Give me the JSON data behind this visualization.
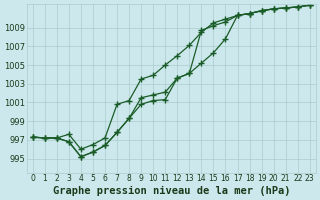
{
  "title": "Graphe pression niveau de la mer (hPa)",
  "background_color": "#cce8ec",
  "grid_color": "#aacccc",
  "line_color": "#1a5c28",
  "xlim": [
    -0.5,
    23.5
  ],
  "ylim": [
    993.5,
    1011.5
  ],
  "yticks": [
    995,
    997,
    999,
    1001,
    1003,
    1005,
    1007,
    1009
  ],
  "xticks": [
    0,
    1,
    2,
    3,
    4,
    5,
    6,
    7,
    8,
    9,
    10,
    11,
    12,
    13,
    14,
    15,
    16,
    17,
    18,
    19,
    20,
    21,
    22,
    23
  ],
  "series1": [
    997.3,
    997.2,
    997.2,
    996.8,
    995.2,
    995.7,
    996.4,
    997.8,
    999.3,
    1000.8,
    1001.2,
    1001.3,
    1003.6,
    1004.1,
    1008.7,
    1009.2,
    1009.6,
    1010.3,
    1010.5,
    1010.8,
    1011.0,
    1011.1,
    1011.2,
    1011.4
  ],
  "series2": [
    997.3,
    997.2,
    997.2,
    997.6,
    996.0,
    996.5,
    997.2,
    1000.8,
    1001.2,
    1003.5,
    1003.9,
    1005.0,
    1006.0,
    1007.1,
    1008.5,
    1009.5,
    1009.9,
    1010.3,
    1010.5,
    1010.8,
    1011.0,
    1011.1,
    1011.2,
    1011.4
  ],
  "series3": [
    997.3,
    997.2,
    997.2,
    996.8,
    995.2,
    995.7,
    996.4,
    997.8,
    999.3,
    1001.5,
    1001.8,
    1002.1,
    1003.6,
    1004.1,
    1005.2,
    1006.3,
    1007.8,
    1010.3,
    1010.5,
    1010.8,
    1011.0,
    1011.1,
    1011.2,
    1011.4
  ],
  "title_fontsize": 7.5,
  "tick_fontsize": 5.5,
  "ytick_fontsize": 6.0
}
